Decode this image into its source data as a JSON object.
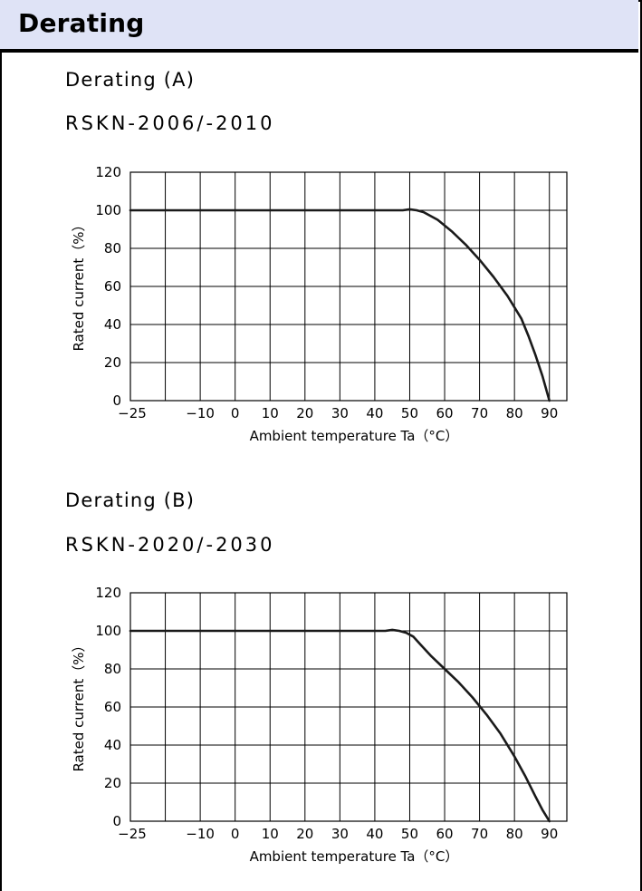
{
  "header": {
    "title": "Derating"
  },
  "charts": [
    {
      "section_title": "Derating (A)",
      "model": "RSKN-2006/-2010"
    },
    {
      "section_title": "Derating (B)",
      "model": "RSKN-2020/-2030"
    }
  ],
  "chart_data": [
    {
      "type": "line",
      "title": "",
      "xlabel": "Ambient temperature Ta（°C）",
      "ylabel": "Rated current（%）",
      "x_ticks": [
        -25,
        -10,
        0,
        10,
        20,
        30,
        40,
        50,
        60,
        70,
        80,
        90
      ],
      "y_ticks": [
        0,
        20,
        40,
        60,
        80,
        100,
        120
      ],
      "xlim": [
        -30,
        95
      ],
      "ylim": [
        0,
        120
      ],
      "grid": true,
      "line_color": "#1a1a1a",
      "series": [
        {
          "x": [
            -30,
            48,
            50,
            52,
            54,
            58,
            62,
            66,
            70,
            74,
            78,
            80,
            82,
            84,
            86,
            88,
            90
          ],
          "y": [
            100,
            100,
            100.5,
            100,
            99,
            95,
            89,
            82,
            74,
            65,
            55,
            49,
            43,
            34,
            24,
            13,
            0
          ]
        }
      ]
    },
    {
      "type": "line",
      "title": "",
      "xlabel": "Ambient temperature Ta（°C）",
      "ylabel": "Rated current（%）",
      "x_ticks": [
        -25,
        -10,
        0,
        10,
        20,
        30,
        40,
        50,
        60,
        70,
        80,
        90
      ],
      "y_ticks": [
        0,
        20,
        40,
        60,
        80,
        100,
        120
      ],
      "xlim": [
        -30,
        95
      ],
      "ylim": [
        0,
        120
      ],
      "grid": true,
      "line_color": "#1a1a1a",
      "series": [
        {
          "x": [
            -30,
            43,
            45,
            47,
            49,
            51,
            53,
            56,
            60,
            64,
            68,
            72,
            76,
            80,
            83,
            86,
            88,
            90
          ],
          "y": [
            100,
            100,
            100.5,
            100,
            99,
            97,
            93,
            87,
            80,
            73,
            65,
            56,
            46,
            34,
            24,
            13,
            6,
            0
          ]
        }
      ]
    }
  ]
}
